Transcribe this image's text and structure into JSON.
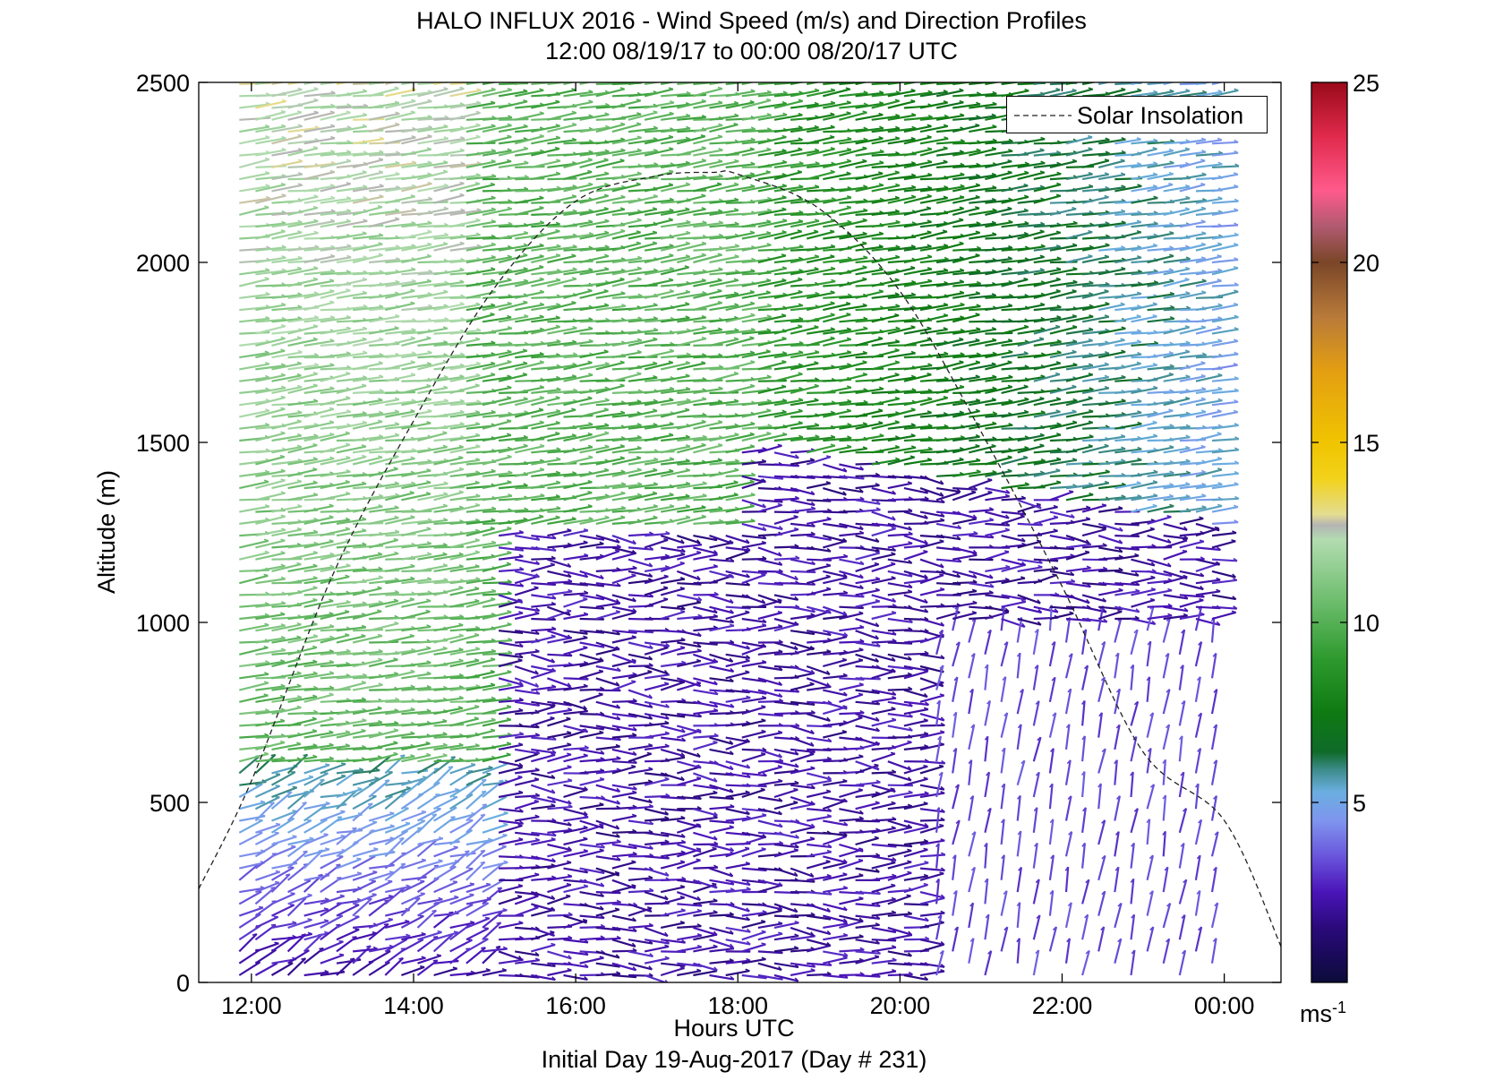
{
  "title_line1": "HALO INFLUX 2016 - Wind Speed (m/s) and Direction Profiles",
  "title_line2": "12:00 08/19/17 to 00:00 08/20/17  UTC",
  "footer": "Initial Day 19-Aug-2017 (Day # 231)",
  "colorbar_unit": "ms-1",
  "legend_entry": "Solar Insolation",
  "chart_data": {
    "type": "wind-barb-profile",
    "title": "HALO INFLUX 2016 - Wind Speed (m/s) and Direction Profiles",
    "subtitle": "12:00 08/19/17 to 00:00 08/20/17  UTC",
    "xlabel": "Hours UTC",
    "ylabel": "Altitude (m)",
    "xlim": [
      11.35,
      24.7
    ],
    "ylim": [
      0,
      2500
    ],
    "xticks": [
      12,
      14,
      16,
      18,
      20,
      22,
      24
    ],
    "xtick_labels": [
      "12:00",
      "14:00",
      "16:00",
      "18:00",
      "20:00",
      "22:00",
      "00:00"
    ],
    "yticks": [
      0,
      500,
      1000,
      1500,
      2000,
      2500
    ],
    "ytick_labels": [
      "0",
      "500",
      "1000",
      "1500",
      "2000",
      "2500"
    ],
    "colorbar": {
      "label": "ms-1",
      "range": [
        0,
        25
      ],
      "ticks": [
        5,
        10,
        15,
        20,
        25
      ],
      "stops": [
        {
          "v": 0,
          "color": "#0b0b3a"
        },
        {
          "v": 1.5,
          "color": "#2a0a7a"
        },
        {
          "v": 2.5,
          "color": "#4a14b8"
        },
        {
          "v": 3.5,
          "color": "#6a55dc"
        },
        {
          "v": 4.5,
          "color": "#7f95ee"
        },
        {
          "v": 5.3,
          "color": "#6aaee0"
        },
        {
          "v": 5.9,
          "color": "#3e8c8c"
        },
        {
          "v": 6.4,
          "color": "#0f6b2a"
        },
        {
          "v": 7.5,
          "color": "#0f7a12"
        },
        {
          "v": 9.0,
          "color": "#2e9a2e"
        },
        {
          "v": 10.5,
          "color": "#6abb6a"
        },
        {
          "v": 12.3,
          "color": "#b2dcb0"
        },
        {
          "v": 12.7,
          "color": "#b4b4b4"
        },
        {
          "v": 13.0,
          "color": "#e4dc92"
        },
        {
          "v": 14.0,
          "color": "#f2d21a"
        },
        {
          "v": 15.0,
          "color": "#f0c400"
        },
        {
          "v": 17.0,
          "color": "#e39e12"
        },
        {
          "v": 18.5,
          "color": "#b87a3a"
        },
        {
          "v": 20.0,
          "color": "#7a4628"
        },
        {
          "v": 21.0,
          "color": "#b05a70"
        },
        {
          "v": 22.0,
          "color": "#ff5a8c"
        },
        {
          "v": 23.5,
          "color": "#e02a4c"
        },
        {
          "v": 25.0,
          "color": "#9a0a1a"
        }
      ]
    },
    "solar_insolation": {
      "style": "dashed",
      "x": [
        11.35,
        12.0,
        13.0,
        14.0,
        15.0,
        16.0,
        17.0,
        17.7,
        18.0,
        19.0,
        20.0,
        21.0,
        22.0,
        23.0,
        24.0,
        24.7
      ],
      "y": [
        260,
        560,
        1130,
        1560,
        1930,
        2170,
        2240,
        2250,
        2245,
        2150,
        1920,
        1530,
        1100,
        640,
        450,
        100
      ]
    },
    "wind_field": {
      "time_range": [
        11.85,
        23.95
      ],
      "altitude_range": [
        20,
        2500
      ],
      "summary": [
        {
          "hours": "11:50-14:30",
          "altitude": "600-2500 m",
          "speed_ms": "9-14",
          "direction": "westerly to slightly northwesterly"
        },
        {
          "hours": "11:50-15:00",
          "altitude": "0-600 m",
          "speed_ms": "2-6",
          "direction": "southwesterly veering with height"
        },
        {
          "hours": "15:00-18:00",
          "altitude": "1250-2500 m",
          "speed_ms": "8-12",
          "direction": "west-northwesterly"
        },
        {
          "hours": "15:30-20:30",
          "altitude": "0-1250 m",
          "speed_ms": "1-4",
          "direction": "variable, mostly westerly"
        },
        {
          "hours": "18:00-21:00",
          "altitude": "1500-2500 m",
          "speed_ms": "5-10",
          "direction": "westerly"
        },
        {
          "hours": "20:30-24:00",
          "altitude": "0-1000 m",
          "speed_ms": "3-5",
          "direction": "southerly"
        },
        {
          "hours": "21:00-24:00",
          "altitude": "1000-2500 m",
          "speed_ms": "3-8",
          "direction": "southwesterly to westerly"
        }
      ]
    }
  }
}
